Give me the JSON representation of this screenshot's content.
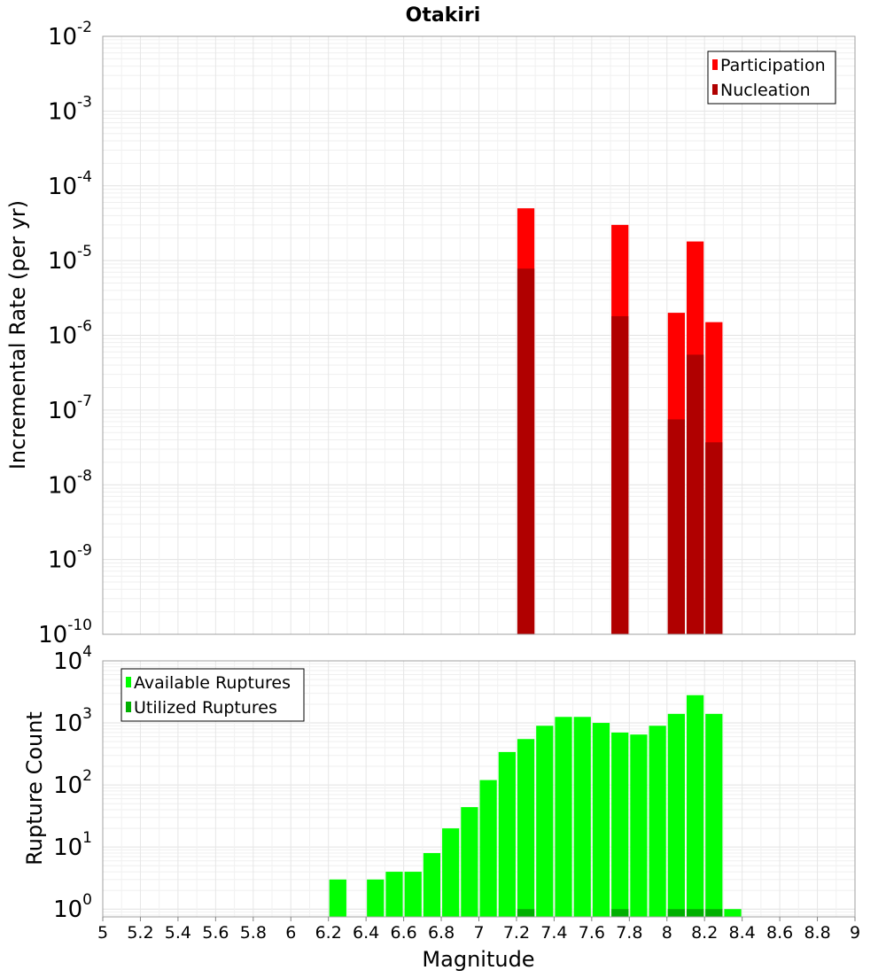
{
  "chart_data": [
    {
      "type": "bar",
      "title": "Otakiri",
      "xlabel": "",
      "ylabel": "Incremental Rate (per yr)",
      "yscale": "log",
      "ylim": [
        1e-10,
        0.01
      ],
      "xlim": [
        5,
        9
      ],
      "y_tick_exponents": [
        "-10",
        "-9",
        "-8",
        "-7",
        "-6",
        "-5",
        "-4",
        "-3",
        "-2"
      ],
      "grid": true,
      "legend_position": "top-right",
      "colors": {
        "Participation": "#ff0000",
        "Nucleation": "#b00000"
      },
      "series": [
        {
          "name": "Participation",
          "x": [
            7.25,
            7.75,
            8.05,
            8.15,
            8.25
          ],
          "values": [
            5e-05,
            3e-05,
            2e-06,
            1.8e-05,
            1.5e-06
          ]
        },
        {
          "name": "Nucleation",
          "x": [
            7.25,
            7.75,
            8.05,
            8.15,
            8.25
          ],
          "values": [
            7.8e-06,
            1.8e-06,
            7.5e-08,
            5.5e-07,
            3.7e-08
          ]
        }
      ]
    },
    {
      "type": "bar",
      "title": "",
      "xlabel": "Magnitude",
      "ylabel": "Rupture Count",
      "yscale": "log",
      "ylim": [
        0.75,
        10000
      ],
      "xlim": [
        5,
        9
      ],
      "x_ticks": [
        "5",
        "5.2",
        "5.4",
        "5.6",
        "5.8",
        "6",
        "6.2",
        "6.4",
        "6.6",
        "6.8",
        "7",
        "7.2",
        "7.4",
        "7.6",
        "7.8",
        "8",
        "8.2",
        "8.4",
        "8.6",
        "8.8",
        "9"
      ],
      "y_tick_exponents": [
        "0",
        "1",
        "2",
        "3",
        "4"
      ],
      "grid": true,
      "legend_position": "top-left",
      "colors": {
        "Available Ruptures": "#00ff00",
        "Utilized Ruptures": "#00b000"
      },
      "series": [
        {
          "name": "Available Ruptures",
          "x": [
            6.25,
            6.45,
            6.55,
            6.65,
            6.75,
            6.85,
            6.95,
            7.05,
            7.15,
            7.25,
            7.35,
            7.45,
            7.55,
            7.65,
            7.75,
            7.85,
            7.95,
            8.05,
            8.15,
            8.25,
            8.35
          ],
          "values": [
            3,
            3,
            4,
            4,
            8,
            20,
            44,
            120,
            340,
            550,
            900,
            1250,
            1250,
            1000,
            700,
            650,
            900,
            1400,
            2800,
            1400,
            1
          ]
        },
        {
          "name": "Utilized Ruptures",
          "x": [
            7.25,
            7.75,
            8.05,
            8.15,
            8.25
          ],
          "values": [
            1,
            1,
            1,
            1,
            1
          ]
        }
      ]
    }
  ]
}
